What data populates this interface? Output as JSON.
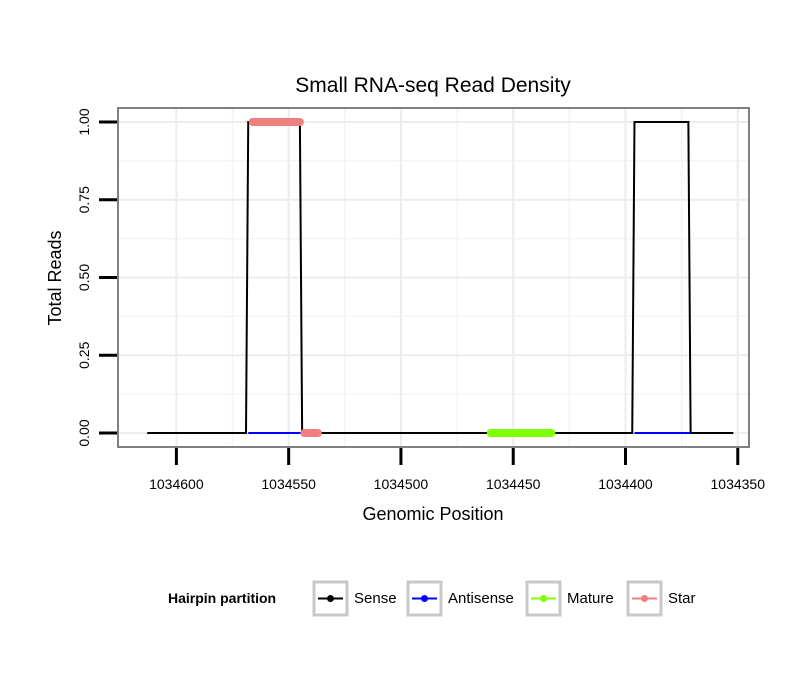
{
  "chart_data": {
    "type": "line",
    "title": "Small RNA-seq Read Density",
    "xlabel": "Genomic Position",
    "ylabel": "Total Reads",
    "x_reversed": true,
    "xlim": [
      1034626,
      1034345
    ],
    "ylim": [
      -0.045,
      1.045
    ],
    "x_ticks": [
      1034600,
      1034550,
      1034500,
      1034450,
      1034400,
      1034350
    ],
    "x_tick_labels": [
      "1034600",
      "1034550",
      "1034500",
      "1034450",
      "1034400",
      "1034350"
    ],
    "y_ticks": [
      0,
      0.25,
      0.5,
      0.75,
      1
    ],
    "y_tick_labels": [
      "0.00",
      "0.25",
      "0.50",
      "0.75",
      "1.00"
    ],
    "grid": true,
    "legend_title": "Hairpin partition",
    "legend_position": "bottom",
    "series": [
      {
        "name": "Sense",
        "color": "#000000",
        "style": "line",
        "x": [
          1034613,
          1034569,
          1034568,
          1034545,
          1034544,
          1034397,
          1034396,
          1034372,
          1034371,
          1034352
        ],
        "y": [
          0,
          0,
          1,
          1,
          0,
          0,
          1,
          1,
          0,
          0
        ]
      },
      {
        "name": "Antisense",
        "color": "#0000ff",
        "style": "line",
        "segments": [
          {
            "x": [
              1034568,
              1034544
            ],
            "y": [
              0,
              0
            ]
          },
          {
            "x": [
              1034396,
              1034371
            ],
            "y": [
              0,
              0
            ]
          }
        ]
      },
      {
        "name": "Mature",
        "color": "#7fff00",
        "style": "thick",
        "segments": [
          {
            "x": [
              1034460,
              1034433
            ],
            "y": [
              0,
              0
            ]
          }
        ]
      },
      {
        "name": "Star",
        "color": "#f08080",
        "style": "thick",
        "segments": [
          {
            "x": [
              1034566,
              1034545
            ],
            "y": [
              1,
              1
            ]
          },
          {
            "x": [
              1034543,
              1034537
            ],
            "y": [
              0,
              0
            ]
          }
        ]
      }
    ]
  }
}
